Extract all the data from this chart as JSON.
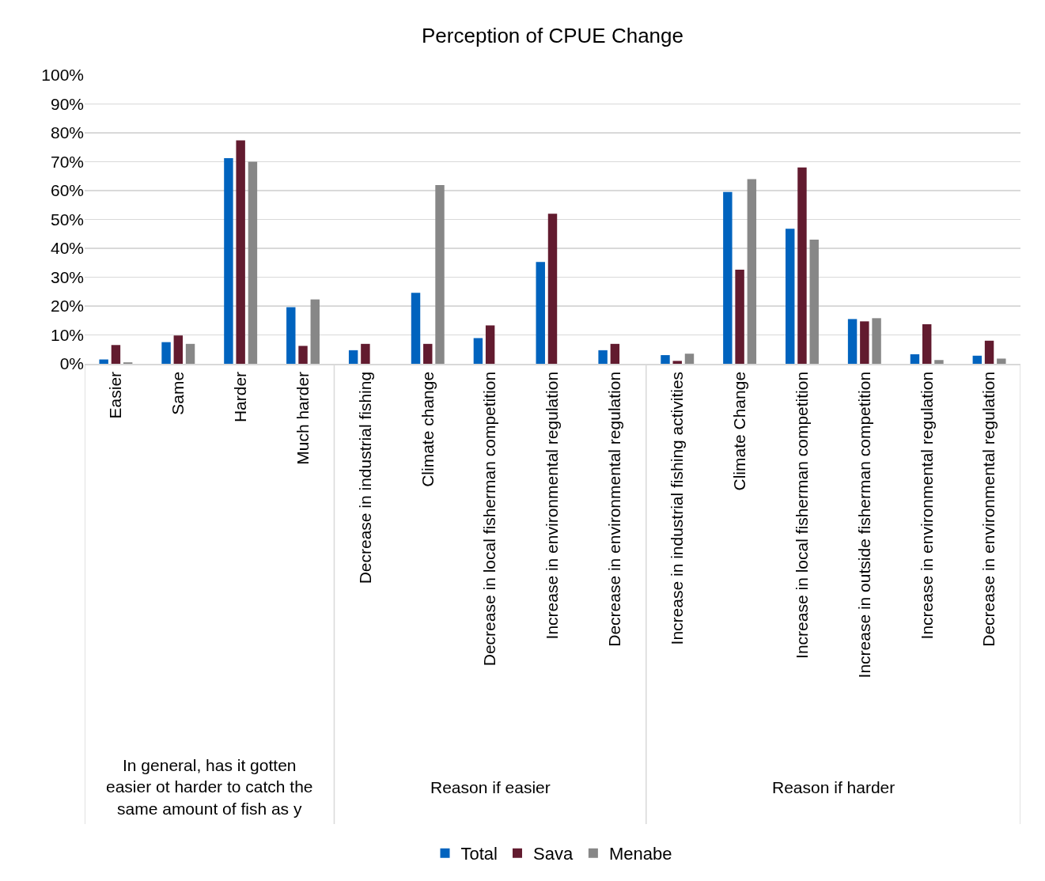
{
  "chart_data": {
    "type": "bar",
    "title": "Perception of CPUE Change",
    "categories": [
      "Easier",
      "Same",
      "Harder",
      "Much harder",
      "Decrease in industrial fishing",
      "Climate change",
      "Decrease in local fisherman competition",
      "Increase in environmental regulation",
      "Decrease in environmental regulation",
      "Increase in industrial fishing activities",
      "Climate Change",
      "Increase in local fisherman competition",
      "Increase in outside fisherman competition",
      "Increase in environmental regulation",
      "Decrease in environmental regulation"
    ],
    "series": [
      {
        "name": "Total",
        "color": "#0063be",
        "values": [
          1.5,
          7.5,
          71.2,
          19.6,
          4.7,
          24.6,
          8.9,
          35.3,
          4.7,
          3.0,
          59.5,
          46.8,
          15.5,
          3.3,
          2.8
        ]
      },
      {
        "name": "Sava",
        "color": "#621b2f",
        "values": [
          6.5,
          9.8,
          77.4,
          6.2,
          6.9,
          6.9,
          13.3,
          52.0,
          6.9,
          1.0,
          32.6,
          68.0,
          14.7,
          13.7,
          8.0
        ]
      },
      {
        "name": "Menabe",
        "color": "#878787",
        "values": [
          0.5,
          6.9,
          70.0,
          22.3,
          0,
          61.9,
          0,
          0,
          0,
          3.5,
          64.0,
          43.0,
          15.8,
          1.3,
          1.8
        ]
      }
    ],
    "ylim": [
      0,
      100
    ],
    "yticks": [
      {
        "value": 0,
        "label": "0%"
      },
      {
        "value": 10,
        "label": "10%"
      },
      {
        "value": 20,
        "label": "20%"
      },
      {
        "value": 30,
        "label": "30%"
      },
      {
        "value": 40,
        "label": "40%"
      },
      {
        "value": 50,
        "label": "50%"
      },
      {
        "value": 60,
        "label": "60%"
      },
      {
        "value": 70,
        "label": "70%"
      },
      {
        "value": 80,
        "label": "80%"
      },
      {
        "value": 90,
        "label": "90%"
      },
      {
        "value": 100,
        "label": "100%"
      }
    ],
    "grid": "y",
    "legend": "bottom",
    "annotations": [
      "In general, has it gotten easier ot harder to catch the same amount of fish as y",
      "Reason if easier",
      "Reason if harder"
    ]
  }
}
